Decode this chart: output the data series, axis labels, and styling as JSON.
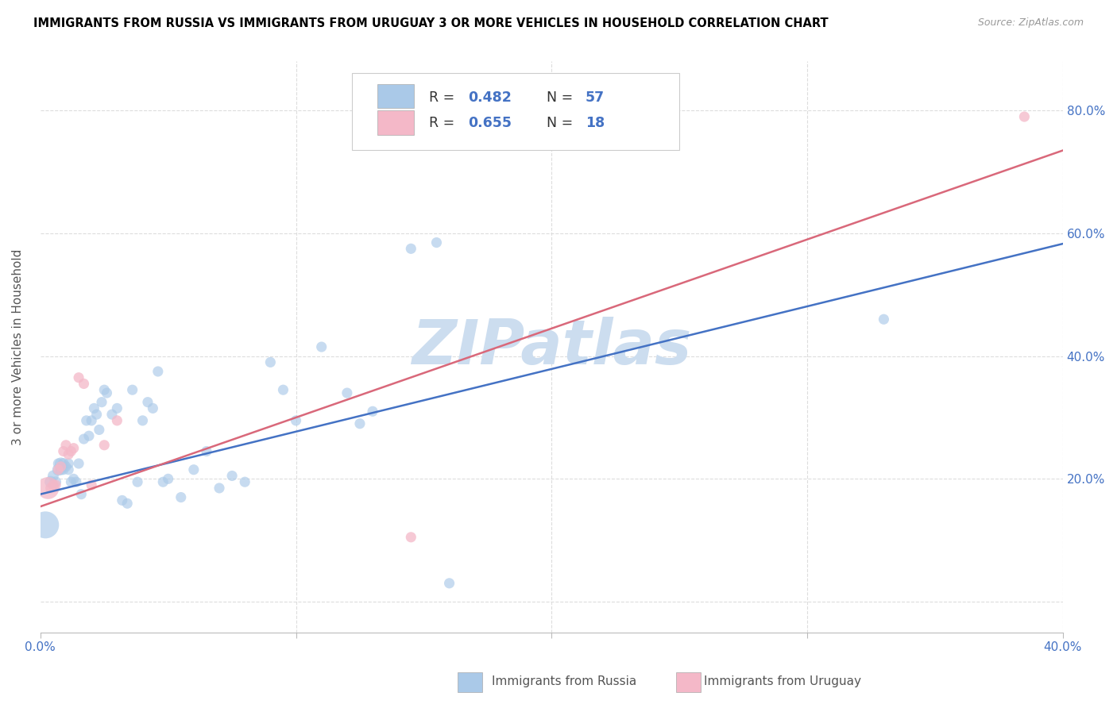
{
  "title": "IMMIGRANTS FROM RUSSIA VS IMMIGRANTS FROM URUGUAY 3 OR MORE VEHICLES IN HOUSEHOLD CORRELATION CHART",
  "source": "Source: ZipAtlas.com",
  "ylabel": "3 or more Vehicles in Household",
  "xlim": [
    0.0,
    0.4
  ],
  "ylim": [
    -0.05,
    0.88
  ],
  "russia_color": "#aac9e8",
  "uruguay_color": "#f4b8c8",
  "russia_line_color": "#4472C4",
  "uruguay_line_color": "#d9687a",
  "text_blue": "#4472C4",
  "watermark": "ZIPatlas",
  "watermark_color": "#ccddef",
  "russia_slope": 1.02,
  "russia_intercept": 0.175,
  "uruguay_slope": 1.45,
  "uruguay_intercept": 0.155,
  "russia_scatter": [
    [
      0.002,
      0.125
    ],
    [
      0.004,
      0.195
    ],
    [
      0.005,
      0.205
    ],
    [
      0.006,
      0.195
    ],
    [
      0.007,
      0.215
    ],
    [
      0.007,
      0.225
    ],
    [
      0.008,
      0.225
    ],
    [
      0.008,
      0.215
    ],
    [
      0.009,
      0.215
    ],
    [
      0.009,
      0.225
    ],
    [
      0.01,
      0.22
    ],
    [
      0.011,
      0.225
    ],
    [
      0.011,
      0.215
    ],
    [
      0.012,
      0.195
    ],
    [
      0.013,
      0.2
    ],
    [
      0.014,
      0.195
    ],
    [
      0.015,
      0.225
    ],
    [
      0.016,
      0.175
    ],
    [
      0.017,
      0.265
    ],
    [
      0.018,
      0.295
    ],
    [
      0.019,
      0.27
    ],
    [
      0.02,
      0.295
    ],
    [
      0.021,
      0.315
    ],
    [
      0.022,
      0.305
    ],
    [
      0.023,
      0.28
    ],
    [
      0.024,
      0.325
    ],
    [
      0.025,
      0.345
    ],
    [
      0.026,
      0.34
    ],
    [
      0.028,
      0.305
    ],
    [
      0.03,
      0.315
    ],
    [
      0.032,
      0.165
    ],
    [
      0.034,
      0.16
    ],
    [
      0.036,
      0.345
    ],
    [
      0.038,
      0.195
    ],
    [
      0.04,
      0.295
    ],
    [
      0.042,
      0.325
    ],
    [
      0.044,
      0.315
    ],
    [
      0.046,
      0.375
    ],
    [
      0.048,
      0.195
    ],
    [
      0.05,
      0.2
    ],
    [
      0.055,
      0.17
    ],
    [
      0.06,
      0.215
    ],
    [
      0.065,
      0.245
    ],
    [
      0.07,
      0.185
    ],
    [
      0.075,
      0.205
    ],
    [
      0.08,
      0.195
    ],
    [
      0.09,
      0.39
    ],
    [
      0.095,
      0.345
    ],
    [
      0.1,
      0.295
    ],
    [
      0.11,
      0.415
    ],
    [
      0.12,
      0.34
    ],
    [
      0.125,
      0.29
    ],
    [
      0.13,
      0.31
    ],
    [
      0.145,
      0.575
    ],
    [
      0.155,
      0.585
    ],
    [
      0.16,
      0.03
    ],
    [
      0.33,
      0.46
    ]
  ],
  "uruguay_scatter": [
    [
      0.003,
      0.185
    ],
    [
      0.004,
      0.185
    ],
    [
      0.005,
      0.19
    ],
    [
      0.006,
      0.19
    ],
    [
      0.007,
      0.215
    ],
    [
      0.008,
      0.22
    ],
    [
      0.009,
      0.245
    ],
    [
      0.01,
      0.255
    ],
    [
      0.011,
      0.24
    ],
    [
      0.012,
      0.245
    ],
    [
      0.013,
      0.25
    ],
    [
      0.015,
      0.365
    ],
    [
      0.017,
      0.355
    ],
    [
      0.02,
      0.19
    ],
    [
      0.025,
      0.255
    ],
    [
      0.03,
      0.295
    ],
    [
      0.145,
      0.105
    ],
    [
      0.385,
      0.79
    ]
  ],
  "russia_sizes": [
    600,
    120,
    100,
    100,
    120,
    90,
    120,
    100,
    90,
    100,
    90,
    90,
    90,
    90,
    90,
    90,
    90,
    90,
    90,
    90,
    90,
    90,
    90,
    90,
    90,
    90,
    90,
    90,
    90,
    90,
    90,
    90,
    90,
    90,
    90,
    90,
    90,
    90,
    90,
    90,
    90,
    90,
    90,
    90,
    90,
    90,
    90,
    90,
    90,
    90,
    90,
    90,
    90,
    90,
    90,
    90,
    90
  ],
  "uruguay_sizes": [
    400,
    90,
    90,
    90,
    90,
    90,
    90,
    90,
    90,
    90,
    90,
    90,
    90,
    90,
    90,
    90,
    90,
    90
  ]
}
